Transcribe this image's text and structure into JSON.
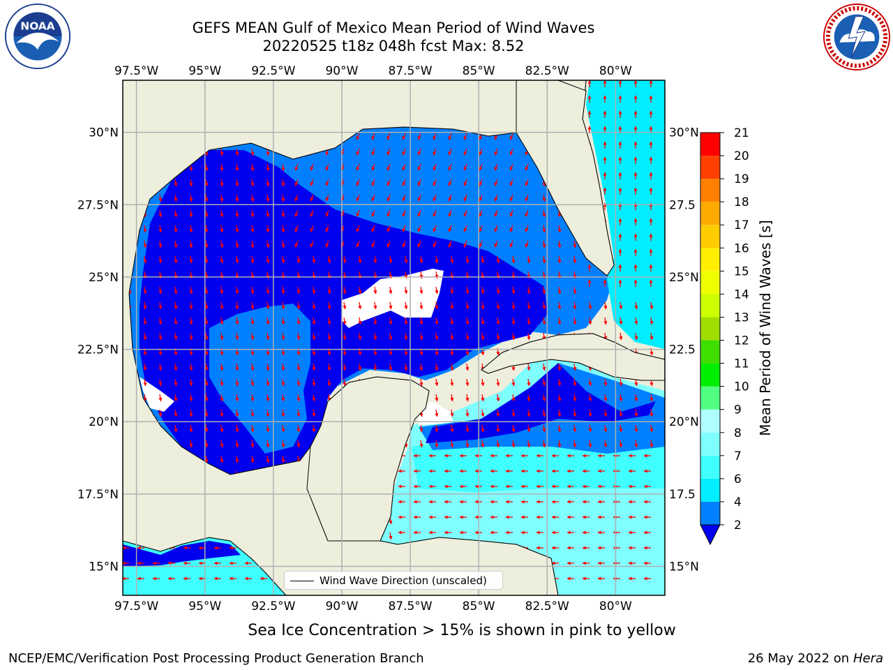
{
  "title_line1": "GEFS MEAN Gulf of Mexico Mean Period of Wind Waves",
  "title_line2": "20220525 t18z 048h fcst   Max: 8.52",
  "footer_note": "Sea Ice Concentration > 15% is shown in pink to yellow",
  "credit_left": "NCEP/EMC/Verification Post Processing Product Generation Branch",
  "credit_right_date": "26 May 2022 on",
  "credit_right_host": "Hera",
  "legend_label": "Wind Wave Direction (unscaled)",
  "logos": {
    "left": "noaa-logo",
    "right": "national-weather-service-logo"
  },
  "chart_data": {
    "type": "heatmap",
    "title": "GEFS MEAN Gulf of Mexico Mean Period of Wind Waves",
    "subtitle": "20220525 t18z 048h fcst   Max: 8.52",
    "max_value": 8.52,
    "xlim": [
      -98.0,
      -78.2
    ],
    "ylim": [
      14.0,
      31.8
    ],
    "lon_ticks": [
      -97.5,
      -95,
      -92.5,
      -90,
      -87.5,
      -85,
      -82.5,
      -80
    ],
    "lon_tick_labels": [
      "97.5°W",
      "95°W",
      "92.5°W",
      "90°W",
      "87.5°W",
      "85°W",
      "82.5°W",
      "80°W"
    ],
    "lat_ticks": [
      15,
      17.5,
      20,
      22.5,
      25,
      27.5,
      30
    ],
    "lat_tick_labels_left": [
      "15°N",
      "17.5°N",
      "20°N",
      "22.5°N",
      "25°N",
      "27.5°N",
      "30°N"
    ],
    "lat_tick_labels_right": [
      "15°N",
      "17.5",
      "20°N",
      "22.5",
      "25°N",
      "27.5",
      "30°N"
    ],
    "grid": true,
    "colorbar": {
      "label": "Mean Period of Wind Waves [s]",
      "levels": [
        2,
        4,
        6,
        7,
        8,
        9,
        10,
        11,
        12,
        13,
        14,
        15,
        16,
        17,
        18,
        19,
        20,
        21
      ],
      "tick_labels": [
        "2",
        "4",
        "6",
        "7",
        "8",
        "9",
        "10",
        "11",
        "12",
        "13",
        "14",
        "15",
        "16",
        "17",
        "18",
        "19",
        "20",
        "21"
      ],
      "colors": [
        "#0080ff",
        "#00eeff",
        "#40ffff",
        "#80ffff",
        "#b0ffff",
        "#50ff80",
        "#00ee00",
        "#40dd00",
        "#a0dd00",
        "#ccff00",
        "#eeff00",
        "#ffee00",
        "#ffcc00",
        "#ffaa00",
        "#ff8000",
        "#ff4000",
        "#ff0000"
      ],
      "under_color": "#0000ee",
      "extend": "min"
    },
    "land_color": "#eeeedd",
    "arrow_color": "#ff0000"
  }
}
